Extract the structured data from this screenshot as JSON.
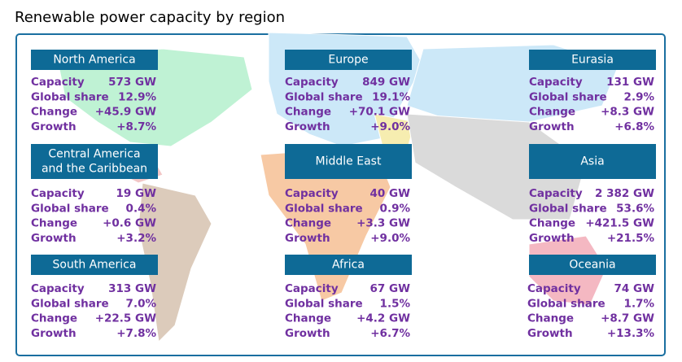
{
  "title": "Renewable power capacity by region",
  "regions": [
    {
      "name": [
        "North America"
      ],
      "rows": [
        {
          "label": "Capacity",
          "value": "573 GW"
        },
        {
          "label": "Global share",
          "value": "12.9%"
        },
        {
          "label": "Change",
          "value": "+45.9 GW"
        },
        {
          "label": "Growth",
          "value": "+8.7%"
        }
      ]
    },
    {
      "name": [
        "Europe"
      ],
      "rows": [
        {
          "label": "Capacity",
          "value": "849 GW"
        },
        {
          "label": "Global share",
          "value": "19.1%"
        },
        {
          "label": "Change",
          "value": "+70.1 GW"
        },
        {
          "label": "Growth",
          "value": "+9.0%"
        }
      ]
    },
    {
      "name": [
        "Eurasia"
      ],
      "rows": [
        {
          "label": "Capacity",
          "value": "131 GW"
        },
        {
          "label": "Global share",
          "value": "2.9%"
        },
        {
          "label": "Change",
          "value": "+8.3 GW"
        },
        {
          "label": "Growth",
          "value": "+6.8%"
        }
      ]
    },
    {
      "name": [
        "Central America",
        "and the Caribbean"
      ],
      "rows": [
        {
          "label": "Capacity",
          "value": "19 GW"
        },
        {
          "label": "Global share",
          "value": "0.4%"
        },
        {
          "label": "Change",
          "value": "+0.6 GW"
        },
        {
          "label": "Growth",
          "value": "+3.2%"
        }
      ]
    },
    {
      "name": [
        "Middle East"
      ],
      "rows": [
        {
          "label": "Capacity",
          "value": "40 GW"
        },
        {
          "label": "Global share",
          "value": "0.9%"
        },
        {
          "label": "Change",
          "value": "+3.3 GW"
        },
        {
          "label": "Growth",
          "value": "+9.0%"
        }
      ]
    },
    {
      "name": [
        "Asia"
      ],
      "rows": [
        {
          "label": "Capacity",
          "value": "2 382 GW"
        },
        {
          "label": "Global share",
          "value": "53.6%"
        },
        {
          "label": "Change",
          "value": "+421.5 GW"
        },
        {
          "label": "Growth",
          "value": "+21.5%"
        }
      ]
    },
    {
      "name": [
        "South America"
      ],
      "rows": [
        {
          "label": "Capacity",
          "value": "313 GW"
        },
        {
          "label": "Global share",
          "value": "7.0%"
        },
        {
          "label": "Change",
          "value": "+22.5 GW"
        },
        {
          "label": "Growth",
          "value": "+7.8%"
        }
      ]
    },
    {
      "name": [
        "Africa"
      ],
      "rows": [
        {
          "label": "Capacity",
          "value": "67 GW"
        },
        {
          "label": "Global share",
          "value": "1.5%"
        },
        {
          "label": "Change",
          "value": "+4.2 GW"
        },
        {
          "label": "Growth",
          "value": "+6.7%"
        }
      ]
    },
    {
      "name": [
        "Oceania"
      ],
      "rows": [
        {
          "label": "Capacity",
          "value": "74 GW"
        },
        {
          "label": "Global share",
          "value": "1.7%"
        },
        {
          "label": "Change",
          "value": "+8.7 GW"
        },
        {
          "label": "Growth",
          "value": "+13.3%"
        }
      ]
    }
  ]
}
